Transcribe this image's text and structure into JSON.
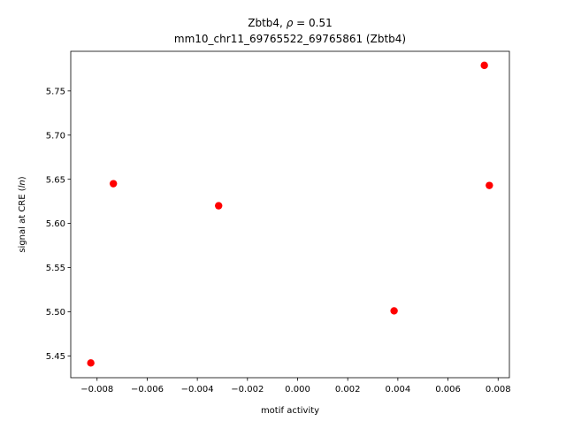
{
  "chart_data": {
    "type": "scatter",
    "title_line1_prefix": "Zbtb4, ",
    "title_line1_rho": "ρ",
    "title_line1_suffix": " = 0.51",
    "title_line2": "mm10_chr11_69765522_69765861 (Zbtb4)",
    "xlabel": "motif activity",
    "ylabel_prefix": "signal at CRE (",
    "ylabel_italic": "ln",
    "ylabel_suffix": ")",
    "xlim": [
      -0.00905,
      0.00845
    ],
    "ylim": [
      5.4253,
      5.7949
    ],
    "xticks": [
      -0.008,
      -0.006,
      -0.004,
      -0.002,
      0.0,
      0.002,
      0.004,
      0.006,
      0.008
    ],
    "xtick_labels": [
      "−0.008",
      "−0.006",
      "−0.004",
      "−0.002",
      "0.000",
      "0.002",
      "0.004",
      "0.006",
      "0.008"
    ],
    "yticks": [
      5.45,
      5.5,
      5.55,
      5.6,
      5.65,
      5.7,
      5.75
    ],
    "ytick_labels": [
      "5.45",
      "5.50",
      "5.55",
      "5.60",
      "5.65",
      "5.70",
      "5.75"
    ],
    "grid": false,
    "marker_color": "#ff0000",
    "points": [
      {
        "x": -0.00825,
        "y": 5.442
      },
      {
        "x": -0.00735,
        "y": 5.645
      },
      {
        "x": -0.00315,
        "y": 5.62
      },
      {
        "x": 0.00385,
        "y": 5.501
      },
      {
        "x": 0.00745,
        "y": 5.779
      },
      {
        "x": 0.00765,
        "y": 5.643
      }
    ]
  }
}
